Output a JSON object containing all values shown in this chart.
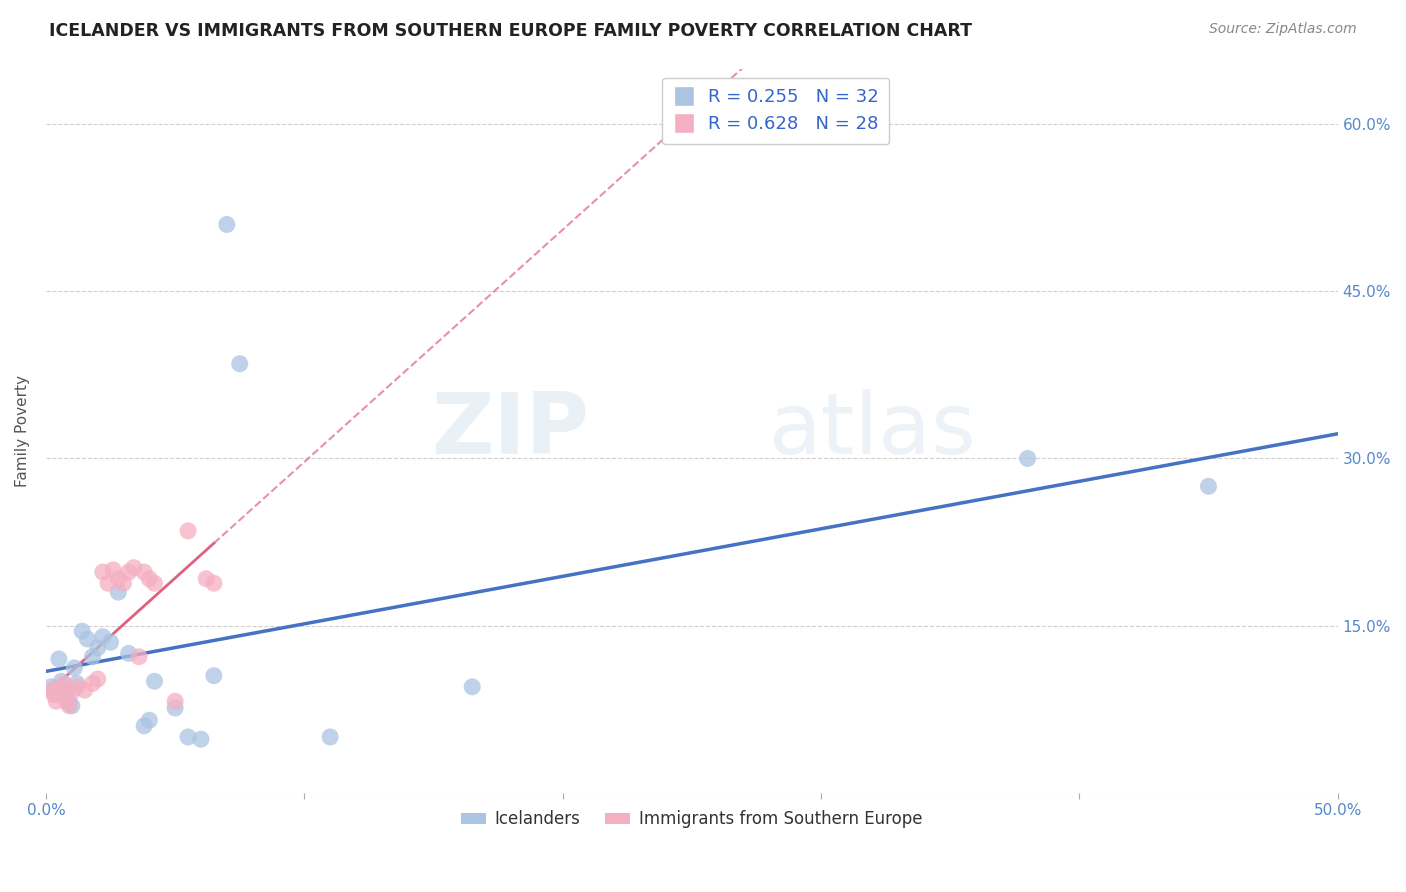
{
  "title": "ICELANDER VS IMMIGRANTS FROM SOUTHERN EUROPE FAMILY POVERTY CORRELATION CHART",
  "source": "Source: ZipAtlas.com",
  "ylabel": "Family Poverty",
  "xlim": [
    0.0,
    0.5
  ],
  "ylim": [
    0.0,
    0.65
  ],
  "legend_label1": "Icelanders",
  "legend_label2": "Immigrants from Southern Europe",
  "R1": "0.255",
  "N1": "32",
  "R2": "0.628",
  "N2": "28",
  "color1": "#aac4e2",
  "color2": "#f5afc2",
  "line_color1": "#4472c4",
  "line_color2": "#e06080",
  "watermark_zip": "ZIP",
  "watermark_atlas": "atlas",
  "icelanders_x": [
    0.002,
    0.003,
    0.004,
    0.005,
    0.006,
    0.007,
    0.008,
    0.009,
    0.01,
    0.011,
    0.012,
    0.014,
    0.016,
    0.018,
    0.02,
    0.022,
    0.025,
    0.028,
    0.032,
    0.038,
    0.04,
    0.042,
    0.05,
    0.055,
    0.06,
    0.065,
    0.07,
    0.075,
    0.11,
    0.165,
    0.38,
    0.45
  ],
  "icelanders_y": [
    0.095,
    0.092,
    0.088,
    0.12,
    0.1,
    0.092,
    0.085,
    0.08,
    0.078,
    0.112,
    0.098,
    0.145,
    0.138,
    0.122,
    0.13,
    0.14,
    0.135,
    0.18,
    0.125,
    0.06,
    0.065,
    0.1,
    0.076,
    0.05,
    0.048,
    0.105,
    0.51,
    0.385,
    0.05,
    0.095,
    0.3,
    0.275
  ],
  "se_x": [
    0.002,
    0.003,
    0.004,
    0.005,
    0.006,
    0.007,
    0.008,
    0.009,
    0.01,
    0.012,
    0.015,
    0.018,
    0.02,
    0.022,
    0.024,
    0.026,
    0.028,
    0.03,
    0.032,
    0.034,
    0.036,
    0.038,
    0.04,
    0.042,
    0.05,
    0.055,
    0.062,
    0.065
  ],
  "se_y": [
    0.092,
    0.088,
    0.082,
    0.093,
    0.088,
    0.098,
    0.082,
    0.078,
    0.09,
    0.095,
    0.092,
    0.098,
    0.102,
    0.198,
    0.188,
    0.2,
    0.192,
    0.188,
    0.198,
    0.202,
    0.122,
    0.198,
    0.192,
    0.188,
    0.082,
    0.235,
    0.192,
    0.188
  ],
  "background_color": "#ffffff",
  "grid_color": "#cccccc"
}
